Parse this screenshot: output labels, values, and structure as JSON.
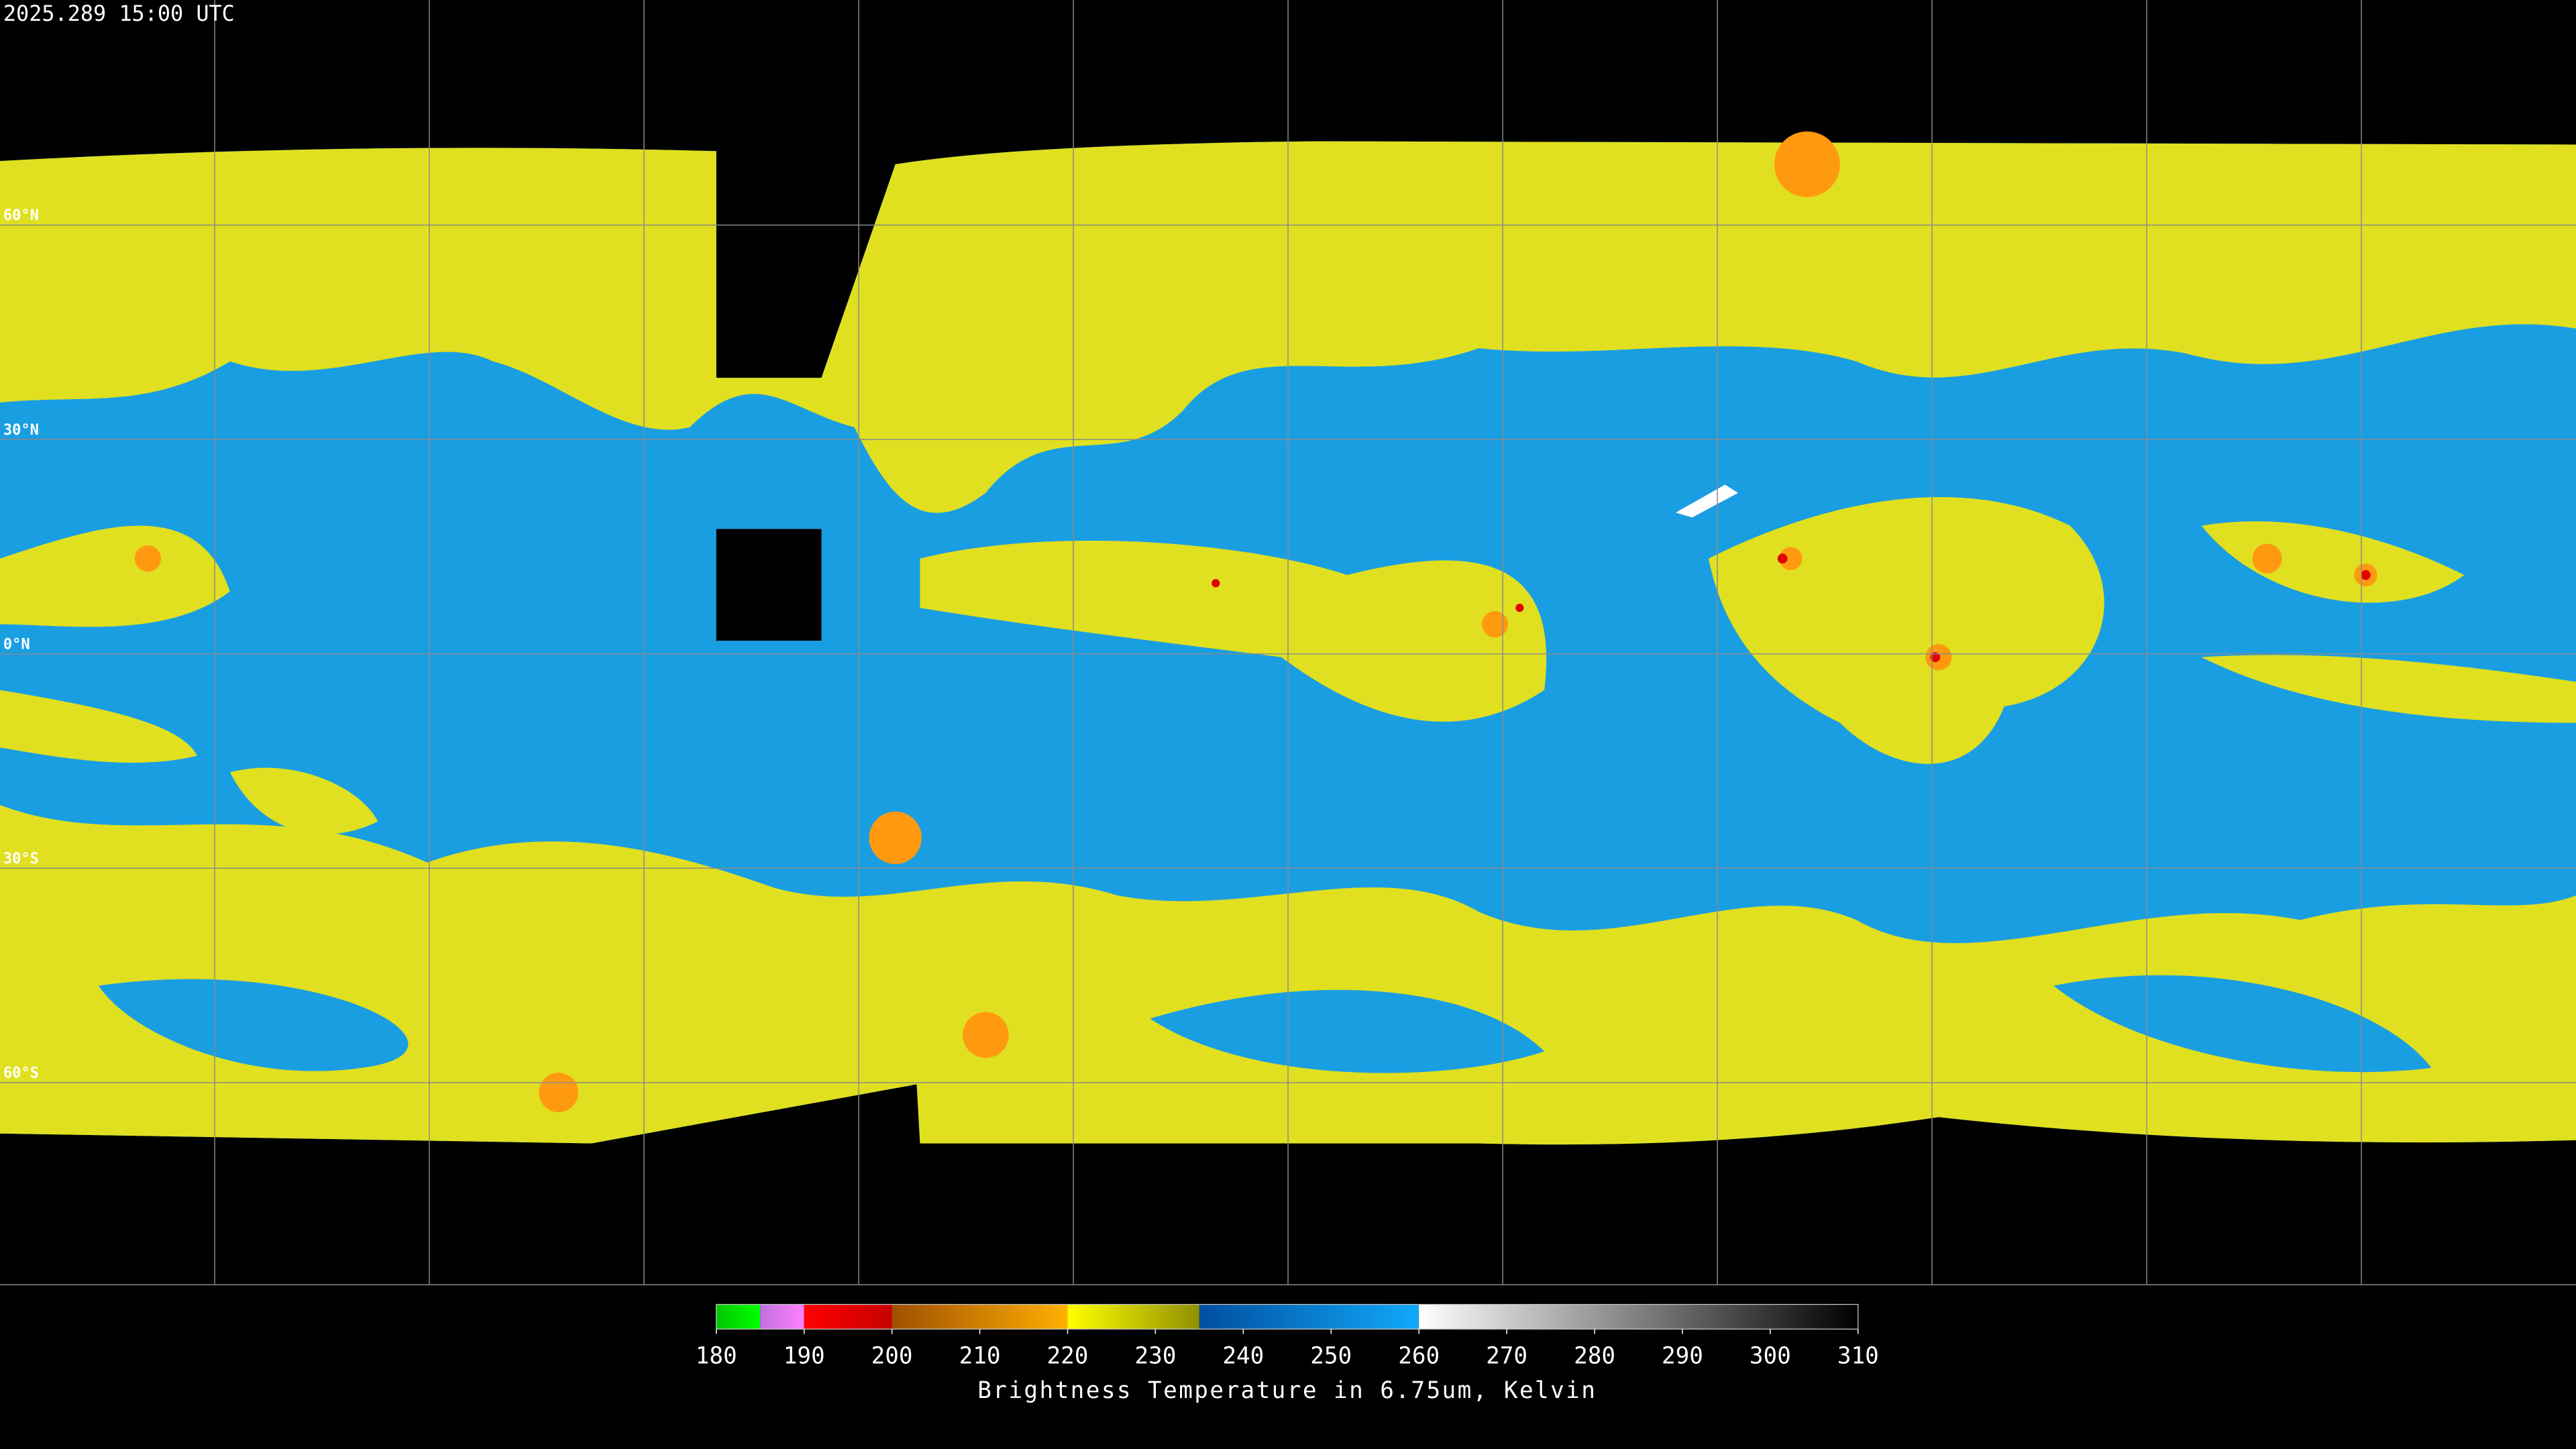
{
  "header": {
    "title": "2025.289 15:00 UTC"
  },
  "map": {
    "latitude_labels": [
      "60°N",
      "30°N",
      "0°N",
      "30°S",
      "60°S"
    ]
  },
  "colorbar": {
    "label": "Brightness Temperature in 6.75um, Kelvin",
    "lim": [
      180,
      310
    ],
    "ticks": [
      180,
      190,
      200,
      210,
      220,
      230,
      240,
      250,
      260,
      270,
      280,
      290,
      300,
      310
    ],
    "segments": [
      {
        "range": [
          180,
          185
        ],
        "colors": [
          "#00c800",
          "#00ff00"
        ]
      },
      {
        "range": [
          185,
          190
        ],
        "colors": [
          "#c070e0",
          "#ff80ff"
        ]
      },
      {
        "range": [
          190,
          200
        ],
        "colors": [
          "#ff0000",
          "#c80000"
        ]
      },
      {
        "range": [
          200,
          220
        ],
        "colors": [
          "#a05000",
          "#ffb000"
        ]
      },
      {
        "range": [
          220,
          235
        ],
        "colors": [
          "#ffff00",
          "#909000"
        ]
      },
      {
        "range": [
          235,
          260
        ],
        "colors": [
          "#0050a0",
          "#10a8f8"
        ]
      },
      {
        "range": [
          260,
          310
        ],
        "colors": [
          "#ffffff",
          "#000000"
        ]
      }
    ]
  }
}
